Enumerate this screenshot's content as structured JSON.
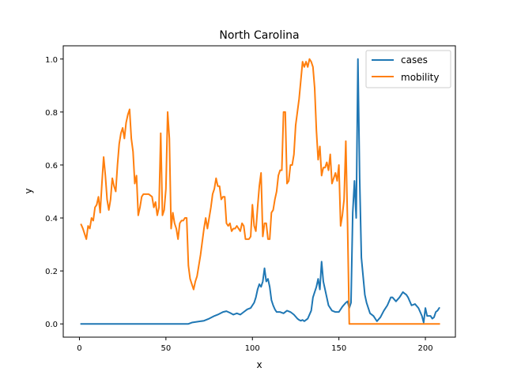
{
  "chart_data": {
    "type": "line",
    "title": "North Carolina",
    "xlabel": "x",
    "ylabel": "y",
    "xlim": [
      -9.35,
      217.35
    ],
    "ylim": [
      -0.05,
      1.05
    ],
    "xticks": [
      0,
      50,
      100,
      150,
      200
    ],
    "xtick_labels": [
      "0",
      "50",
      "100",
      "150",
      "200"
    ],
    "yticks": [
      0.0,
      0.2,
      0.4,
      0.6,
      0.8,
      1.0
    ],
    "ytick_labels": [
      "0.0",
      "0.2",
      "0.4",
      "0.6",
      "0.8",
      "1.0"
    ],
    "grid": false,
    "legend_position": "upper right",
    "series": [
      {
        "name": "cases",
        "color": "#1f77b4",
        "points": [
          [
            1,
            0.0
          ],
          [
            10,
            0.0
          ],
          [
            20,
            0.0
          ],
          [
            30,
            0.0
          ],
          [
            40,
            0.0
          ],
          [
            50,
            0.0
          ],
          [
            60,
            0.0
          ],
          [
            63,
            0.0
          ],
          [
            65,
            0.005
          ],
          [
            68,
            0.008
          ],
          [
            72,
            0.012
          ],
          [
            75,
            0.02
          ],
          [
            78,
            0.03
          ],
          [
            80,
            0.035
          ],
          [
            83,
            0.045
          ],
          [
            85,
            0.048
          ],
          [
            87,
            0.042
          ],
          [
            89,
            0.035
          ],
          [
            91,
            0.04
          ],
          [
            93,
            0.035
          ],
          [
            95,
            0.045
          ],
          [
            97,
            0.055
          ],
          [
            99,
            0.06
          ],
          [
            101,
            0.08
          ],
          [
            102,
            0.1
          ],
          [
            103,
            0.13
          ],
          [
            104,
            0.15
          ],
          [
            105,
            0.14
          ],
          [
            106,
            0.16
          ],
          [
            107,
            0.21
          ],
          [
            108,
            0.16
          ],
          [
            109,
            0.17
          ],
          [
            110,
            0.14
          ],
          [
            111,
            0.09
          ],
          [
            112,
            0.07
          ],
          [
            113,
            0.055
          ],
          [
            114,
            0.045
          ],
          [
            116,
            0.045
          ],
          [
            118,
            0.04
          ],
          [
            120,
            0.05
          ],
          [
            122,
            0.045
          ],
          [
            124,
            0.035
          ],
          [
            126,
            0.02
          ],
          [
            127,
            0.015
          ],
          [
            128,
            0.012
          ],
          [
            129,
            0.015
          ],
          [
            130,
            0.01
          ],
          [
            131,
            0.015
          ],
          [
            132,
            0.02
          ],
          [
            134,
            0.05
          ],
          [
            135,
            0.1
          ],
          [
            136,
            0.12
          ],
          [
            137,
            0.14
          ],
          [
            138,
            0.17
          ],
          [
            139,
            0.13
          ],
          [
            140,
            0.235
          ],
          [
            141,
            0.16
          ],
          [
            142,
            0.13
          ],
          [
            143,
            0.1
          ],
          [
            144,
            0.07
          ],
          [
            146,
            0.05
          ],
          [
            148,
            0.045
          ],
          [
            150,
            0.045
          ],
          [
            152,
            0.065
          ],
          [
            154,
            0.08
          ],
          [
            155,
            0.085
          ],
          [
            156,
            0.06
          ],
          [
            157,
            0.08
          ],
          [
            158,
            0.42
          ],
          [
            159,
            0.54
          ],
          [
            160,
            0.4
          ],
          [
            161,
            1.0
          ],
          [
            162,
            0.55
          ],
          [
            163,
            0.25
          ],
          [
            164,
            0.18
          ],
          [
            165,
            0.11
          ],
          [
            166,
            0.08
          ],
          [
            168,
            0.04
          ],
          [
            170,
            0.03
          ],
          [
            172,
            0.01
          ],
          [
            174,
            0.025
          ],
          [
            176,
            0.05
          ],
          [
            178,
            0.07
          ],
          [
            180,
            0.1
          ],
          [
            181,
            0.1
          ],
          [
            183,
            0.085
          ],
          [
            185,
            0.1
          ],
          [
            187,
            0.12
          ],
          [
            188,
            0.115
          ],
          [
            189,
            0.11
          ],
          [
            190,
            0.1
          ],
          [
            192,
            0.07
          ],
          [
            194,
            0.075
          ],
          [
            196,
            0.06
          ],
          [
            198,
            0.03
          ],
          [
            199,
            0.005
          ],
          [
            200,
            0.06
          ],
          [
            201,
            0.03
          ],
          [
            202,
            0.03
          ],
          [
            203,
            0.03
          ],
          [
            204,
            0.02
          ],
          [
            205,
            0.025
          ],
          [
            206,
            0.045
          ],
          [
            207,
            0.05
          ],
          [
            208,
            0.06
          ]
        ]
      },
      {
        "name": "mobility",
        "color": "#ff7f0e",
        "points": [
          [
            1,
            0.375
          ],
          [
            2,
            0.36
          ],
          [
            3,
            0.34
          ],
          [
            4,
            0.32
          ],
          [
            5,
            0.37
          ],
          [
            6,
            0.36
          ],
          [
            7,
            0.4
          ],
          [
            8,
            0.39
          ],
          [
            9,
            0.44
          ],
          [
            10,
            0.45
          ],
          [
            11,
            0.48
          ],
          [
            12,
            0.42
          ],
          [
            13,
            0.53
          ],
          [
            14,
            0.63
          ],
          [
            15,
            0.56
          ],
          [
            16,
            0.47
          ],
          [
            17,
            0.43
          ],
          [
            18,
            0.47
          ],
          [
            19,
            0.55
          ],
          [
            20,
            0.52
          ],
          [
            21,
            0.5
          ],
          [
            22,
            0.6
          ],
          [
            23,
            0.68
          ],
          [
            24,
            0.72
          ],
          [
            25,
            0.74
          ],
          [
            26,
            0.7
          ],
          [
            27,
            0.76
          ],
          [
            28,
            0.79
          ],
          [
            29,
            0.81
          ],
          [
            30,
            0.7
          ],
          [
            31,
            0.65
          ],
          [
            32,
            0.53
          ],
          [
            33,
            0.56
          ],
          [
            34,
            0.41
          ],
          [
            35,
            0.44
          ],
          [
            36,
            0.48
          ],
          [
            37,
            0.49
          ],
          [
            38,
            0.49
          ],
          [
            40,
            0.49
          ],
          [
            42,
            0.48
          ],
          [
            43,
            0.44
          ],
          [
            44,
            0.46
          ],
          [
            45,
            0.41
          ],
          [
            46,
            0.44
          ],
          [
            47,
            0.72
          ],
          [
            48,
            0.41
          ],
          [
            49,
            0.43
          ],
          [
            50,
            0.51
          ],
          [
            51,
            0.8
          ],
          [
            52,
            0.7
          ],
          [
            53,
            0.36
          ],
          [
            54,
            0.42
          ],
          [
            55,
            0.38
          ],
          [
            56,
            0.36
          ],
          [
            57,
            0.32
          ],
          [
            58,
            0.38
          ],
          [
            59,
            0.39
          ],
          [
            60,
            0.39
          ],
          [
            61,
            0.4
          ],
          [
            62,
            0.4
          ],
          [
            63,
            0.22
          ],
          [
            64,
            0.17
          ],
          [
            65,
            0.15
          ],
          [
            66,
            0.13
          ],
          [
            67,
            0.16
          ],
          [
            68,
            0.18
          ],
          [
            70,
            0.26
          ],
          [
            72,
            0.36
          ],
          [
            73,
            0.4
          ],
          [
            74,
            0.36
          ],
          [
            75,
            0.4
          ],
          [
            76,
            0.44
          ],
          [
            77,
            0.49
          ],
          [
            78,
            0.51
          ],
          [
            79,
            0.55
          ],
          [
            80,
            0.52
          ],
          [
            81,
            0.52
          ],
          [
            82,
            0.47
          ],
          [
            83,
            0.48
          ],
          [
            84,
            0.48
          ],
          [
            85,
            0.38
          ],
          [
            86,
            0.37
          ],
          [
            87,
            0.38
          ],
          [
            88,
            0.35
          ],
          [
            89,
            0.36
          ],
          [
            90,
            0.36
          ],
          [
            91,
            0.37
          ],
          [
            92,
            0.36
          ],
          [
            93,
            0.35
          ],
          [
            94,
            0.38
          ],
          [
            95,
            0.37
          ],
          [
            96,
            0.32
          ],
          [
            97,
            0.32
          ],
          [
            98,
            0.32
          ],
          [
            99,
            0.33
          ],
          [
            100,
            0.45
          ],
          [
            101,
            0.37
          ],
          [
            102,
            0.35
          ],
          [
            103,
            0.44
          ],
          [
            104,
            0.52
          ],
          [
            105,
            0.57
          ],
          [
            106,
            0.33
          ],
          [
            107,
            0.38
          ],
          [
            108,
            0.38
          ],
          [
            109,
            0.32
          ],
          [
            110,
            0.32
          ],
          [
            111,
            0.42
          ],
          [
            112,
            0.43
          ],
          [
            113,
            0.47
          ],
          [
            114,
            0.5
          ],
          [
            115,
            0.56
          ],
          [
            116,
            0.58
          ],
          [
            117,
            0.58
          ],
          [
            118,
            0.8
          ],
          [
            119,
            0.8
          ],
          [
            120,
            0.53
          ],
          [
            121,
            0.54
          ],
          [
            122,
            0.6
          ],
          [
            123,
            0.6
          ],
          [
            124,
            0.64
          ],
          [
            125,
            0.75
          ],
          [
            126,
            0.8
          ],
          [
            127,
            0.85
          ],
          [
            128,
            0.92
          ],
          [
            129,
            0.99
          ],
          [
            130,
            0.97
          ],
          [
            131,
            0.99
          ],
          [
            132,
            0.97
          ],
          [
            133,
            1.0
          ],
          [
            134,
            0.99
          ],
          [
            135,
            0.97
          ],
          [
            136,
            0.89
          ],
          [
            137,
            0.73
          ],
          [
            138,
            0.62
          ],
          [
            139,
            0.67
          ],
          [
            140,
            0.56
          ],
          [
            141,
            0.59
          ],
          [
            142,
            0.59
          ],
          [
            143,
            0.61
          ],
          [
            144,
            0.58
          ],
          [
            145,
            0.64
          ],
          [
            146,
            0.53
          ],
          [
            147,
            0.55
          ],
          [
            148,
            0.57
          ],
          [
            149,
            0.54
          ],
          [
            150,
            0.6
          ],
          [
            151,
            0.37
          ],
          [
            152,
            0.41
          ],
          [
            153,
            0.47
          ],
          [
            154,
            0.69
          ],
          [
            155,
            0.38
          ],
          [
            156,
            0.0
          ],
          [
            160,
            0.0
          ],
          [
            170,
            0.0
          ],
          [
            180,
            0.0
          ],
          [
            190,
            0.0
          ],
          [
            200,
            0.0
          ],
          [
            208,
            0.0
          ]
        ]
      }
    ]
  }
}
